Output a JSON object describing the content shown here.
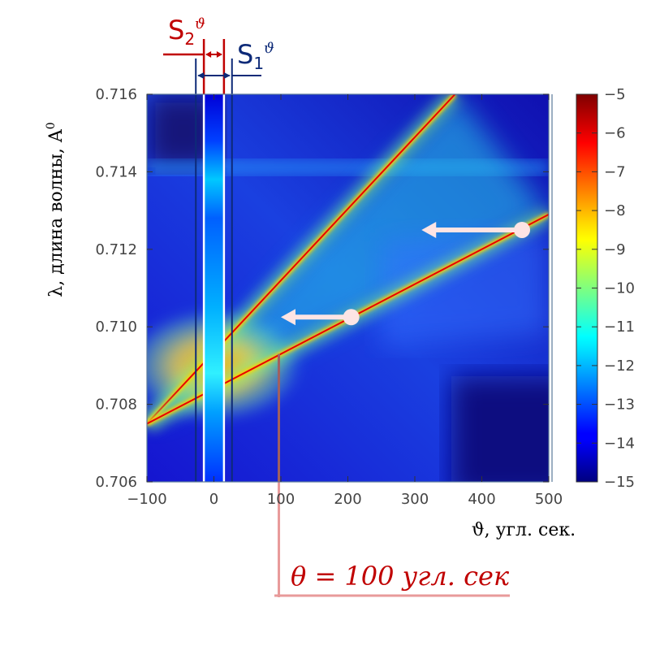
{
  "chart_data": {
    "type": "heatmap",
    "title": "",
    "xlabel": "ϑ, угл. сек.",
    "ylabel": "λ, длина волны, A",
    "ylabel_superscript": "0",
    "xlim": [
      -100,
      500
    ],
    "ylim": [
      0.706,
      0.716
    ],
    "x_ticks": [
      -100,
      0,
      100,
      200,
      300,
      400,
      500
    ],
    "x_tick_labels": [
      "−100",
      "0",
      "100",
      "200",
      "300",
      "400",
      "500"
    ],
    "y_ticks": [
      0.706,
      0.708,
      0.71,
      0.712,
      0.714,
      0.716
    ],
    "y_tick_labels": [
      "0.706",
      "0.708",
      "0.710",
      "0.712",
      "0.714",
      "0.716"
    ],
    "colormap": "jet",
    "colorbar": {
      "range": [
        -15,
        -5
      ],
      "ticks": [
        -15,
        -14,
        -13,
        -12,
        -11,
        -10,
        -9,
        -8,
        -7,
        -6,
        -5
      ],
      "tick_labels": [
        "−15",
        "−14",
        "−13",
        "−12",
        "−11",
        "−10",
        "−9",
        "−8",
        "−7",
        "−6",
        "−5"
      ]
    },
    "ridges": [
      {
        "x": [
          -100,
          360
        ],
        "y": [
          0.7075,
          0.716
        ]
      },
      {
        "x": [
          -100,
          500
        ],
        "y": [
          0.7075,
          0.7129
        ]
      }
    ],
    "band": {
      "x_range": [
        -15,
        15
      ]
    },
    "slit_s1": {
      "label": "S",
      "sub": "1",
      "sup": "ϑ",
      "x_range": [
        -27,
        27
      ],
      "color": "#0d2a78"
    },
    "slit_s2": {
      "label": "S",
      "sub": "2",
      "sup": "ϑ",
      "x_range": [
        -15,
        15
      ],
      "color": "#c00000"
    },
    "arrows": [
      {
        "from": [
          460,
          0.7125
        ],
        "to": [
          310,
          0.7125
        ]
      },
      {
        "from": [
          205,
          0.71025
        ],
        "to": [
          100,
          0.71025
        ]
      }
    ],
    "marker": {
      "x": 97,
      "y": 0.7093,
      "text": "θ = 100 угл. сек"
    }
  }
}
